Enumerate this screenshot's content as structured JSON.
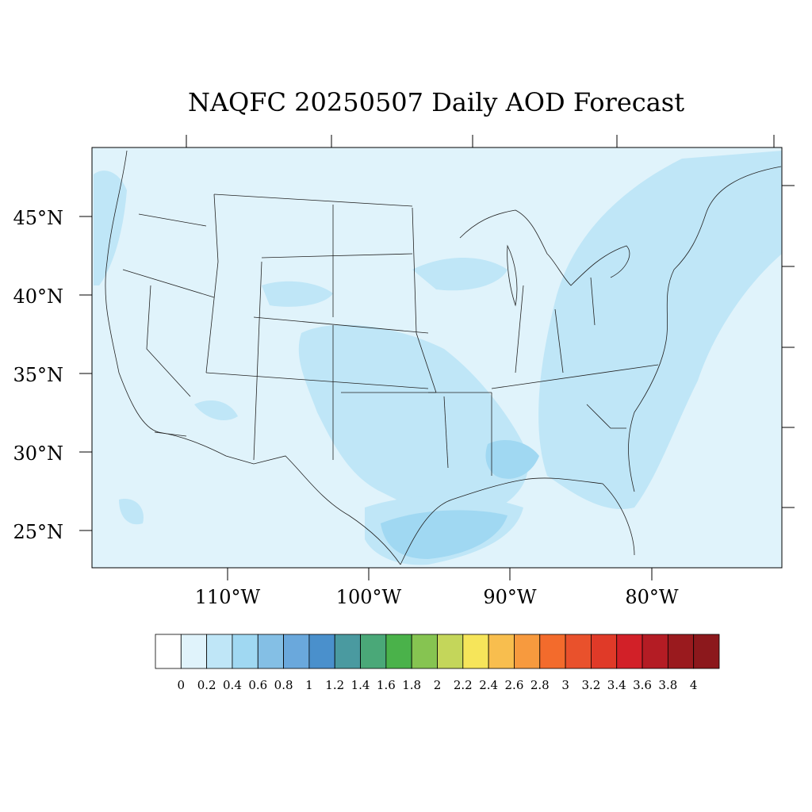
{
  "title": "NAQFC 20250507 Daily AOD Forecast",
  "map": {
    "lat_labels": [
      "45°N",
      "40°N",
      "35°N",
      "30°N",
      "25°N"
    ],
    "lon_labels": [
      "110°W",
      "100°W",
      "90°W",
      "80°W"
    ],
    "background_color": "#e0f3fb"
  },
  "colorbar": {
    "labels": [
      "0",
      "0.2",
      "0.4",
      "0.6",
      "0.8",
      "1",
      "1.2",
      "1.4",
      "1.6",
      "1.8",
      "2",
      "2.2",
      "2.4",
      "2.6",
      "2.8",
      "3",
      "3.2",
      "3.4",
      "3.6",
      "3.8",
      "4"
    ],
    "colors": [
      "#ffffff",
      "#e0f3fb",
      "#bfe6f7",
      "#a0d8f2",
      "#84bfe5",
      "#6aa8dc",
      "#4a90cc",
      "#4a9aa0",
      "#4aa878",
      "#4ab24a",
      "#86c451",
      "#c4d65a",
      "#f6e55a",
      "#f8be4e",
      "#f79a3e",
      "#f36b2c",
      "#e9512c",
      "#e03a28",
      "#d22028",
      "#b41c24",
      "#9a1a1e",
      "#8c181c"
    ]
  }
}
